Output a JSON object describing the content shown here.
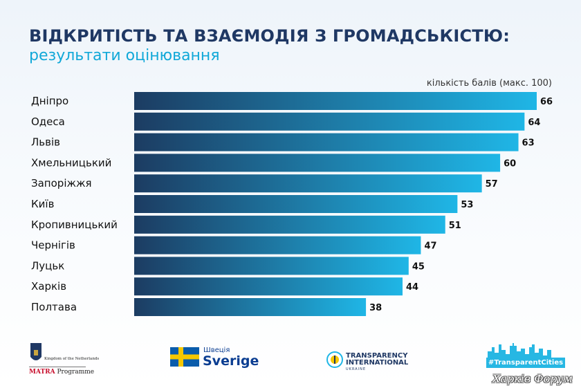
{
  "header": {
    "title": "ВІДКРИТІСТЬ ТА ВЗАЄМОДІЯ З ГРОМАДСЬКІСТЮ:",
    "subtitle": "результати оцінювання",
    "unit_note": "кількість балів (макс. 100)"
  },
  "colors": {
    "bar_start": "#1c3c62",
    "bar_end": "#1fb6e6",
    "title": "#1f3864",
    "subtitle": "#11a8d8"
  },
  "chart_data": {
    "type": "bar",
    "orientation": "horizontal",
    "categories": [
      "Дніпро",
      "Одеса",
      "Львів",
      "Хмельницький",
      "Запоріжжя",
      "Київ",
      "Кропивницький",
      "Чернігів",
      "Луцьк",
      "Харків",
      "Полтава"
    ],
    "values": [
      66,
      64,
      63,
      60,
      57,
      53,
      51,
      47,
      45,
      44,
      38
    ],
    "xlim": [
      0,
      66
    ],
    "grid": false,
    "legend": "none",
    "data_labels": true
  },
  "footer": {
    "logos": [
      {
        "name": "Kingdom of the Netherlands",
        "icon": "netherlands-coat-of-arms-icon",
        "line1": "Kingdom of the Netherlands",
        "line2_bold": "MATRA",
        "line2_rest": " Programme"
      },
      {
        "name": "Sweden",
        "icon": "swedish-flag-icon",
        "line1": "Швеція",
        "line2": "Sverige"
      },
      {
        "name": "Transparency International Ukraine",
        "icon": "ti-globe-icon",
        "line1": "TRANSPARENCY",
        "line2": "INTERNATIONAL",
        "line3": "UKRAINE"
      },
      {
        "name": "Transparent Cities",
        "icon": "city-skyline-icon",
        "tag": "#TransparentCities"
      }
    ],
    "watermark": "Харків Форум"
  }
}
